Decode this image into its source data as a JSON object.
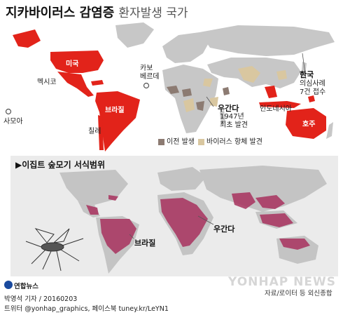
{
  "title": {
    "main": "지카바이러스 감염증",
    "sub": "환자발생 국가"
  },
  "map1": {
    "labels": {
      "us": "미국",
      "mexico": "멕시코",
      "caboverde": [
        "카보",
        "베르데"
      ],
      "samoa": "사모아",
      "brazil": "브라질",
      "chile": "칠레",
      "uganda": "우간다",
      "uganda_note": [
        "1947년",
        "최초 발견"
      ],
      "korea": "한국",
      "korea_note": [
        "의심사례",
        "7건 접수"
      ],
      "indonesia": "인도네시아",
      "australia": "호주"
    },
    "legend": [
      {
        "label": "이전 발생",
        "color": "#8c7b72"
      },
      {
        "label": "바이러스 항체 발견",
        "color": "#d9c7a0"
      }
    ],
    "colors": {
      "current": "#e2231a",
      "previous": "#8c7b72",
      "antibody": "#d9c7a0",
      "land": "#c7c7c7"
    }
  },
  "map2": {
    "title": "▶이집트 숲모기 서식범위",
    "labels": {
      "brazil": "브라질",
      "uganda": "우간다"
    },
    "colors": {
      "habitat": "#a8325e",
      "land": "#c4c4c4",
      "background": "#ebebeb"
    }
  },
  "footer": {
    "logo": "연합뉴스",
    "source": "자료/로이터 등 외신종합",
    "credit": "박영석 기자 / 20160203",
    "sns": "트위터 @yonhap_graphics, 페이스북 tuney.kr/LeYN1",
    "watermark": "YONHAP NEWS"
  }
}
